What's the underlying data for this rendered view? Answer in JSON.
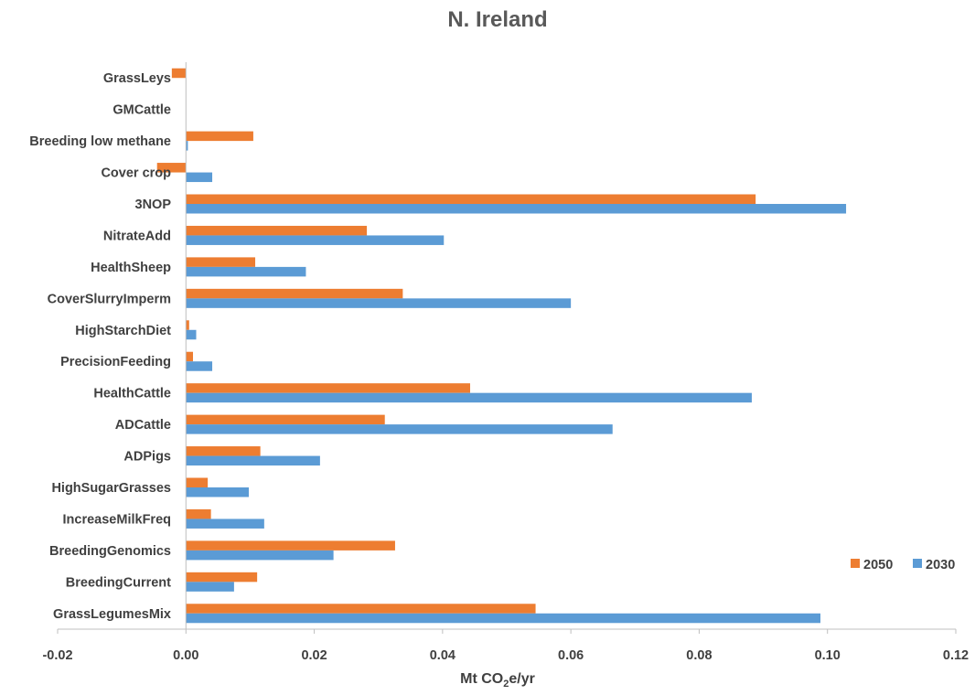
{
  "chart_data": {
    "type": "bar",
    "orientation": "horizontal",
    "title": "N. Ireland",
    "xlabel": {
      "prefix": "Mt CO",
      "subscript": "2",
      "suffix": "e/yr"
    },
    "xlim": [
      -0.02,
      0.12
    ],
    "x_ticks": [
      -0.02,
      0,
      0.02,
      0.04,
      0.06,
      0.08,
      0.1,
      0.12
    ],
    "x_tick_labels": [
      "-0.02",
      "0.00",
      "0.02",
      "0.04",
      "0.06",
      "0.08",
      "0.10",
      "0.12"
    ],
    "grid": false,
    "legend_position": "right",
    "categories": [
      "GrassLeys",
      "GMCattle",
      "Breeding low methane",
      "Cover crop",
      "3NOP",
      "NitrateAdd",
      "HealthSheep",
      "CoverSlurryImperm",
      "HighStarchDiet",
      "PrecisionFeeding",
      "HealthCattle",
      "ADCattle",
      "ADPigs",
      "HighSugarGrasses",
      "IncreaseMilkFreq",
      "BreedingGenomics",
      "BreedingCurrent",
      "GrassLegumesMix"
    ],
    "series": [
      {
        "name": "2050",
        "color": "#ED7D31",
        "values": [
          -0.0022,
          0.0,
          0.0105,
          -0.0045,
          0.0888,
          0.0282,
          0.0108,
          0.0338,
          0.0005,
          0.0011,
          0.0443,
          0.031,
          0.0116,
          0.0034,
          0.0039,
          0.0326,
          0.0111,
          0.0545
        ]
      },
      {
        "name": "2030",
        "color": "#5B9BD5",
        "values": [
          0.0,
          0.0,
          0.0003,
          0.0041,
          0.1029,
          0.0402,
          0.0187,
          0.06,
          0.0016,
          0.0041,
          0.0882,
          0.0665,
          0.0209,
          0.0098,
          0.0122,
          0.023,
          0.0075,
          0.0989
        ]
      }
    ]
  }
}
